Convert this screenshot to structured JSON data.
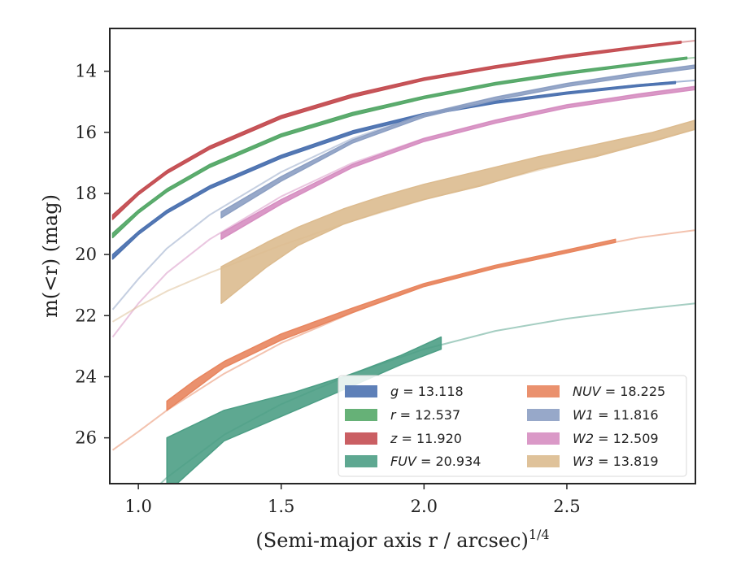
{
  "chart_data": {
    "type": "line",
    "xlabel": "(Semi-major axis r / arcsec)",
    "xlabel_sup": "1/4",
    "ylabel": "m(<r) (mag)",
    "xlim": [
      0.9,
      2.95
    ],
    "ylim": [
      27.5,
      12.6
    ],
    "y_inverted": true,
    "x_ticks": [
      1.0,
      1.5,
      2.0,
      2.5
    ],
    "x_tick_labels": [
      "1.0",
      "1.5",
      "2.0",
      "2.5"
    ],
    "y_ticks": [
      14,
      16,
      18,
      20,
      22,
      24,
      26
    ],
    "y_tick_labels": [
      "14",
      "16",
      "18",
      "20",
      "22",
      "24",
      "26"
    ],
    "grid": false,
    "legend": {
      "position": "lower-right",
      "columns": 2,
      "entries": [
        {
          "name": "g",
          "value": "13.118"
        },
        {
          "name": "r",
          "value": "12.537"
        },
        {
          "name": "z",
          "value": "11.920"
        },
        {
          "name": "FUV",
          "value": "20.934"
        },
        {
          "name": "NUV",
          "value": "18.225"
        },
        {
          "name": "W1",
          "value": "11.816"
        },
        {
          "name": "W2",
          "value": "12.509"
        },
        {
          "name": "W3",
          "value": "13.819"
        }
      ]
    },
    "series": [
      {
        "name": "g",
        "color": "#4c72b0",
        "model": {
          "x": [
            0.91,
            1.0,
            1.1,
            1.25,
            1.5,
            1.75,
            2.0,
            2.25,
            2.5,
            2.75,
            2.95
          ],
          "y": [
            20.1,
            19.3,
            18.6,
            17.8,
            16.8,
            16.0,
            15.4,
            15.0,
            14.7,
            14.45,
            14.3
          ]
        },
        "data": {
          "x": [
            0.91,
            1.0,
            1.1,
            1.25,
            1.5,
            1.75,
            2.0,
            2.25,
            2.5,
            2.75,
            2.88
          ],
          "lower": [
            20.0,
            19.25,
            18.55,
            17.75,
            16.75,
            15.95,
            15.38,
            14.98,
            14.68,
            14.44,
            14.34
          ],
          "upper": [
            20.15,
            19.35,
            18.65,
            17.85,
            16.85,
            16.05,
            15.45,
            15.05,
            14.75,
            14.5,
            14.4
          ]
        }
      },
      {
        "name": "r",
        "color": "#55a868",
        "model": {
          "x": [
            0.91,
            1.0,
            1.1,
            1.25,
            1.5,
            1.75,
            2.0,
            2.25,
            2.5,
            2.75,
            2.95
          ],
          "y": [
            19.4,
            18.6,
            17.9,
            17.1,
            16.1,
            15.4,
            14.85,
            14.4,
            14.05,
            13.75,
            13.55
          ]
        },
        "data": {
          "x": [
            0.91,
            1.0,
            1.1,
            1.25,
            1.5,
            1.75,
            2.0,
            2.25,
            2.5,
            2.75,
            2.92
          ],
          "lower": [
            19.3,
            18.55,
            17.85,
            17.05,
            16.05,
            15.35,
            14.82,
            14.37,
            14.02,
            13.73,
            13.54
          ],
          "upper": [
            19.45,
            18.65,
            17.95,
            17.15,
            16.15,
            15.45,
            14.9,
            14.45,
            14.1,
            13.8,
            13.6
          ]
        }
      },
      {
        "name": "z",
        "color": "#c44e52",
        "model": {
          "x": [
            0.91,
            1.0,
            1.1,
            1.25,
            1.5,
            1.75,
            2.0,
            2.25,
            2.5,
            2.75,
            2.95
          ],
          "y": [
            18.8,
            18.0,
            17.3,
            16.5,
            15.5,
            14.8,
            14.25,
            13.85,
            13.5,
            13.2,
            13.0
          ]
        },
        "data": {
          "x": [
            0.91,
            1.0,
            1.1,
            1.25,
            1.5,
            1.75,
            2.0,
            2.25,
            2.5,
            2.75,
            2.9
          ],
          "lower": [
            18.7,
            17.95,
            17.25,
            16.45,
            15.45,
            14.75,
            14.22,
            13.82,
            13.47,
            13.18,
            13.02
          ],
          "upper": [
            18.85,
            18.05,
            17.35,
            16.55,
            15.55,
            14.85,
            14.3,
            13.9,
            13.55,
            13.25,
            13.08
          ]
        }
      },
      {
        "name": "FUV",
        "color": "#4c9e85",
        "model": {
          "x": [
            0.91,
            1.0,
            1.1,
            1.3,
            1.5,
            1.75,
            2.0,
            2.25,
            2.5,
            2.75,
            2.95
          ],
          "y": [
            29.0,
            28.2,
            27.3,
            25.9,
            24.9,
            23.9,
            23.1,
            22.5,
            22.1,
            21.8,
            21.6
          ]
        },
        "data": {
          "x": [
            1.1,
            1.3,
            1.55,
            1.75,
            1.92,
            2.06
          ],
          "lower": [
            26.0,
            25.1,
            24.5,
            23.9,
            23.3,
            22.7
          ],
          "upper": [
            27.8,
            26.1,
            25.1,
            24.3,
            23.6,
            23.1
          ]
        }
      },
      {
        "name": "NUV",
        "color": "#e8855e",
        "model": {
          "x": [
            0.91,
            1.0,
            1.1,
            1.3,
            1.5,
            1.75,
            2.0,
            2.25,
            2.5,
            2.75,
            2.95
          ],
          "y": [
            26.4,
            25.8,
            25.1,
            23.9,
            22.9,
            21.9,
            21.0,
            20.4,
            19.9,
            19.45,
            19.2
          ]
        },
        "data": {
          "x": [
            1.1,
            1.2,
            1.3,
            1.5,
            1.75,
            2.0,
            2.25,
            2.5,
            2.67
          ],
          "lower": [
            24.8,
            24.1,
            23.5,
            22.6,
            21.75,
            20.95,
            20.35,
            19.85,
            19.5
          ],
          "upper": [
            25.1,
            24.4,
            23.7,
            22.8,
            21.9,
            21.05,
            20.45,
            19.95,
            19.6
          ]
        }
      },
      {
        "name": "W1",
        "color": "#8c9fc3",
        "model": {
          "x": [
            0.91,
            1.0,
            1.1,
            1.25,
            1.5,
            1.75,
            2.0,
            2.25,
            2.5,
            2.75,
            2.95
          ],
          "y": [
            21.8,
            20.8,
            19.8,
            18.7,
            17.3,
            16.2,
            15.4,
            14.85,
            14.4,
            14.05,
            13.8
          ]
        },
        "data": {
          "x": [
            1.29,
            1.5,
            1.75,
            2.0,
            2.25,
            2.5,
            2.75,
            2.95
          ],
          "lower": [
            18.6,
            17.45,
            16.25,
            15.4,
            14.85,
            14.4,
            14.05,
            13.8
          ],
          "upper": [
            18.8,
            17.6,
            16.35,
            15.5,
            14.95,
            14.5,
            14.15,
            13.9
          ]
        }
      },
      {
        "name": "W2",
        "color": "#d68ec1",
        "model": {
          "x": [
            0.91,
            1.0,
            1.1,
            1.25,
            1.5,
            1.75,
            2.0,
            2.25,
            2.5,
            2.75,
            2.95
          ],
          "y": [
            22.7,
            21.6,
            20.6,
            19.5,
            18.1,
            17.0,
            16.2,
            15.6,
            15.1,
            14.75,
            14.5
          ]
        },
        "data": {
          "x": [
            1.29,
            1.5,
            1.75,
            2.0,
            2.25,
            2.5,
            2.75,
            2.95
          ],
          "lower": [
            19.3,
            18.2,
            17.05,
            16.2,
            15.6,
            15.1,
            14.75,
            14.5
          ],
          "upper": [
            19.5,
            18.35,
            17.15,
            16.3,
            15.7,
            15.2,
            14.85,
            14.6
          ]
        }
      },
      {
        "name": "W3",
        "color": "#dcbb8f",
        "model": {
          "x": [
            0.91,
            1.0,
            1.1,
            1.25,
            1.5,
            1.75,
            2.0,
            2.25,
            2.5,
            2.75,
            2.95
          ],
          "y": [
            22.2,
            21.7,
            21.2,
            20.6,
            19.7,
            18.9,
            18.2,
            17.6,
            17.0,
            16.4,
            15.9
          ]
        },
        "data": {
          "x": [
            1.29,
            1.45,
            1.56,
            1.72,
            1.85,
            2.0,
            2.2,
            2.4,
            2.6,
            2.8,
            2.95
          ],
          "lower": [
            20.4,
            19.6,
            19.1,
            18.5,
            18.1,
            17.7,
            17.25,
            16.8,
            16.4,
            16.0,
            15.6
          ],
          "upper": [
            21.6,
            20.4,
            19.7,
            19.0,
            18.6,
            18.2,
            17.75,
            17.2,
            16.8,
            16.3,
            15.9
          ]
        }
      }
    ]
  }
}
